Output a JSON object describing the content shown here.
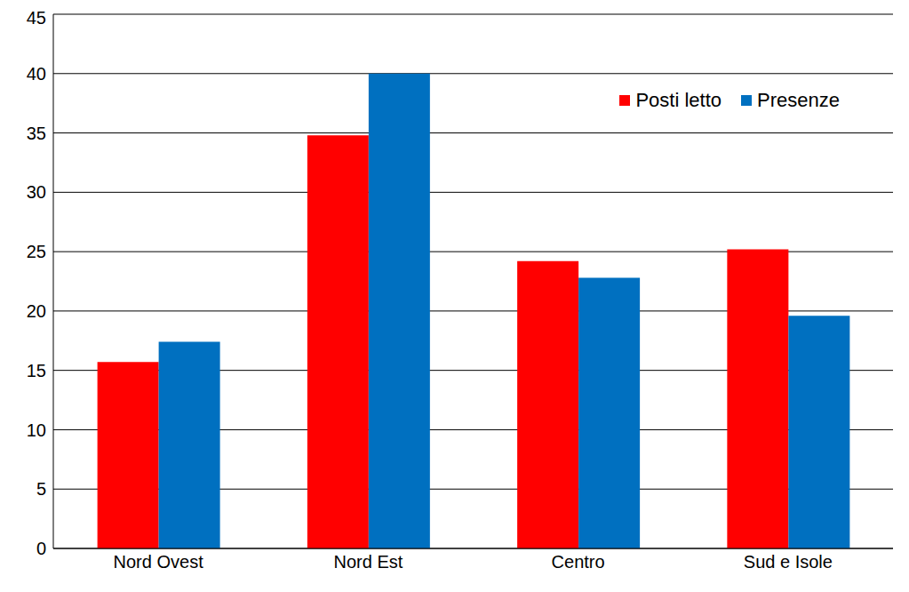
{
  "chart_data": {
    "type": "bar",
    "categories": [
      "Nord Ovest",
      "Nord Est",
      "Centro",
      "Sud e Isole"
    ],
    "series": [
      {
        "name": "Posti letto",
        "color": "#ff0000",
        "values": [
          15.7,
          34.8,
          24.2,
          25.2
        ]
      },
      {
        "name": "Presenze",
        "color": "#0070c0",
        "values": [
          17.4,
          40.0,
          22.8,
          19.6
        ]
      }
    ],
    "ylim": [
      0,
      45
    ],
    "yticks": [
      0,
      5,
      10,
      15,
      20,
      25,
      30,
      35,
      40,
      45
    ],
    "grid": true,
    "legend": "top-right"
  }
}
